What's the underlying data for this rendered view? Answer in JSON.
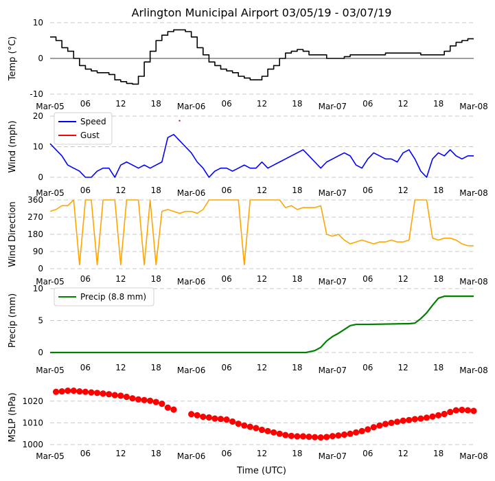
{
  "figure": {
    "title": "Arlington Municipal Airport 03/05/19 - 03/07/19",
    "xlabel": "Time (UTC)",
    "x_ticks": [
      "Mar-05",
      "06",
      "12",
      "18",
      "Mar-06",
      "06",
      "12",
      "18",
      "Mar-07",
      "06",
      "12",
      "18",
      "Mar-08"
    ]
  },
  "chart_data": [
    {
      "id": "temp",
      "type": "line",
      "ylabel": "Temp ($^\\circ$C)",
      "ylabel_display": "Temp (°C)",
      "ylim": [
        -10,
        10
      ],
      "yticks": [
        -10,
        0,
        10
      ],
      "zero_line": true,
      "series": [
        {
          "name": "Temp",
          "color": "#000000",
          "step": true,
          "x_hours": [
            0,
            1,
            2,
            3,
            4,
            5,
            6,
            7,
            8,
            9,
            10,
            11,
            12,
            13,
            14,
            15,
            16,
            17,
            18,
            19,
            20,
            21,
            22,
            23,
            24,
            25,
            26,
            27,
            28,
            29,
            30,
            31,
            32,
            33,
            34,
            35,
            36,
            37,
            38,
            39,
            40,
            41,
            42,
            43,
            44,
            45,
            46,
            47,
            48,
            49,
            50,
            51,
            52,
            53,
            54,
            55,
            56,
            57,
            58,
            59,
            60,
            61,
            62,
            63,
            64,
            65,
            66,
            67,
            68,
            69,
            70,
            71,
            72
          ],
          "values": [
            6,
            5,
            3,
            2,
            0,
            -2,
            -3,
            -3.5,
            -4,
            -4,
            -4.5,
            -6,
            -6.5,
            -7,
            -7.2,
            -5,
            -1,
            2,
            5,
            6.5,
            7.5,
            8,
            8,
            7.5,
            6,
            3,
            1,
            -1,
            -2,
            -3,
            -3.5,
            -4,
            -5,
            -5.5,
            -6,
            -6,
            -5,
            -3,
            -2,
            0,
            1.5,
            2,
            2.5,
            2,
            1,
            1,
            1,
            0,
            0,
            0,
            0.5,
            1,
            1,
            1,
            1,
            1,
            1,
            1.5,
            1.5,
            1.5,
            1.5,
            1.5,
            1.5,
            1,
            1,
            1,
            1,
            2,
            3.5,
            4.5,
            5,
            5.5,
            5.5
          ]
        }
      ]
    },
    {
      "id": "wind",
      "type": "line",
      "ylabel": "Wind (mph)",
      "ylim": [
        0,
        20
      ],
      "yticks": [
        0,
        10,
        20
      ],
      "legend": [
        "Speed",
        "Gust"
      ],
      "series": [
        {
          "name": "Speed",
          "color": "#0000ff",
          "x_hours": [
            0,
            1,
            2,
            3,
            4,
            5,
            6,
            7,
            8,
            9,
            10,
            11,
            12,
            13,
            14,
            15,
            16,
            17,
            18,
            19,
            20,
            21,
            22,
            23,
            24,
            25,
            26,
            27,
            28,
            29,
            30,
            31,
            32,
            33,
            34,
            35,
            36,
            37,
            38,
            39,
            40,
            41,
            42,
            43,
            44,
            45,
            46,
            47,
            48,
            49,
            50,
            51,
            52,
            53,
            54,
            55,
            56,
            57,
            58,
            59,
            60,
            61,
            62,
            63,
            64,
            65,
            66,
            67,
            68,
            69,
            70,
            71,
            72
          ],
          "values": [
            11,
            9,
            7,
            4,
            3,
            2,
            0,
            0,
            2,
            3,
            3,
            0,
            4,
            5,
            4,
            3,
            4,
            3,
            4,
            5,
            13,
            14,
            12,
            10,
            8,
            5,
            3,
            0,
            2,
            3,
            3,
            2,
            3,
            4,
            3,
            3,
            5,
            3,
            4,
            5,
            6,
            7,
            8,
            9,
            7,
            5,
            3,
            5,
            6,
            7,
            8,
            7,
            4,
            3,
            6,
            8,
            7,
            6,
            6,
            5,
            8,
            9,
            6,
            2,
            0,
            6,
            8,
            7,
            9,
            7,
            6,
            7,
            7
          ]
        },
        {
          "name": "Gust",
          "color": "#ff0000",
          "x_hours": [
            22
          ],
          "values": [
            18.5
          ]
        }
      ]
    },
    {
      "id": "dir",
      "type": "line",
      "ylabel": "Wind Direction",
      "ylim": [
        0,
        360
      ],
      "yticks": [
        0,
        90,
        180,
        270,
        360
      ],
      "series": [
        {
          "name": "Direction",
          "color": "#ffa500",
          "x_hours": [
            0,
            1,
            2,
            3,
            4,
            5,
            6,
            7,
            8,
            9,
            10,
            11,
            12,
            13,
            14,
            15,
            16,
            17,
            18,
            19,
            20,
            21,
            22,
            23,
            24,
            25,
            26,
            27,
            28,
            29,
            30,
            31,
            32,
            33,
            34,
            35,
            36,
            37,
            38,
            39,
            40,
            41,
            42,
            43,
            44,
            45,
            46,
            47,
            48,
            49,
            50,
            51,
            52,
            53,
            54,
            55,
            56,
            57,
            58,
            59,
            60,
            61,
            62,
            63,
            64,
            65,
            66,
            67,
            68,
            69,
            70,
            71,
            72
          ],
          "values": [
            300,
            310,
            330,
            330,
            360,
            20,
            360,
            360,
            20,
            360,
            360,
            360,
            20,
            360,
            360,
            360,
            20,
            360,
            20,
            300,
            310,
            300,
            290,
            300,
            300,
            290,
            310,
            360,
            360,
            360,
            360,
            360,
            360,
            20,
            360,
            360,
            360,
            360,
            360,
            360,
            320,
            330,
            310,
            320,
            320,
            320,
            330,
            180,
            170,
            180,
            150,
            130,
            140,
            150,
            140,
            130,
            140,
            140,
            150,
            140,
            140,
            150,
            360,
            360,
            360,
            160,
            150,
            160,
            160,
            150,
            130,
            120,
            120
          ]
        }
      ]
    },
    {
      "id": "precip",
      "type": "line",
      "ylabel": "Precip (mm)",
      "ylim": [
        0,
        10
      ],
      "yticks": [
        0,
        5,
        10
      ],
      "legend": [
        "Precip (8.8 mm)"
      ],
      "series": [
        {
          "name": "Precip (8.8 mm)",
          "color": "#008000",
          "x_hours": [
            0,
            43.5,
            45,
            46,
            47,
            48,
            49,
            50,
            51,
            52,
            53,
            54,
            60,
            61,
            62,
            63,
            64,
            65,
            66,
            67,
            72
          ],
          "values": [
            0,
            0,
            0.3,
            0.8,
            1.8,
            2.5,
            3.0,
            3.6,
            4.2,
            4.4,
            4.4,
            4.4,
            4.5,
            4.5,
            4.6,
            5.3,
            6.2,
            7.4,
            8.5,
            8.8,
            8.8
          ]
        }
      ]
    },
    {
      "id": "mslp",
      "type": "scatter",
      "ylabel": "MSLP (hPa)",
      "ylim": [
        1000,
        1025
      ],
      "yticks": [
        1000,
        1010,
        1020
      ],
      "series": [
        {
          "name": "MSLP",
          "color": "#ff0000",
          "x_hours": [
            1,
            2,
            3,
            4,
            5,
            6,
            7,
            8,
            9,
            10,
            11,
            12,
            13,
            14,
            15,
            16,
            17,
            18,
            19,
            20,
            21,
            24,
            25,
            26,
            27,
            28,
            29,
            30,
            31,
            32,
            33,
            34,
            35,
            36,
            37,
            38,
            39,
            40,
            41,
            42,
            43,
            44,
            45,
            46,
            47,
            48,
            49,
            50,
            51,
            52,
            53,
            54,
            55,
            56,
            57,
            58,
            59,
            60,
            61,
            62,
            63,
            64,
            65,
            66,
            67,
            68,
            69,
            70,
            71,
            72
          ],
          "values": [
            1024.3,
            1024.5,
            1024.8,
            1024.8,
            1024.5,
            1024.3,
            1024.0,
            1023.8,
            1023.5,
            1023.2,
            1022.8,
            1022.5,
            1022.0,
            1021.3,
            1020.8,
            1020.5,
            1020.2,
            1019.6,
            1018.8,
            1017.0,
            1016.1,
            1014.0,
            1013.5,
            1012.8,
            1012.5,
            1012.0,
            1011.8,
            1011.5,
            1010.6,
            1009.6,
            1008.8,
            1008.2,
            1007.6,
            1006.8,
            1006.2,
            1005.6,
            1005.0,
            1004.4,
            1004.0,
            1003.8,
            1003.8,
            1003.6,
            1003.4,
            1003.3,
            1003.5,
            1003.9,
            1004.2,
            1004.6,
            1005.0,
            1005.6,
            1006.2,
            1007.0,
            1008.0,
            1008.8,
            1009.5,
            1010.0,
            1010.5,
            1011.0,
            1011.3,
            1011.7,
            1012.0,
            1012.4,
            1012.9,
            1013.5,
            1014.1,
            1015.0,
            1015.8,
            1016.0,
            1015.8,
            1015.5
          ]
        }
      ]
    }
  ]
}
